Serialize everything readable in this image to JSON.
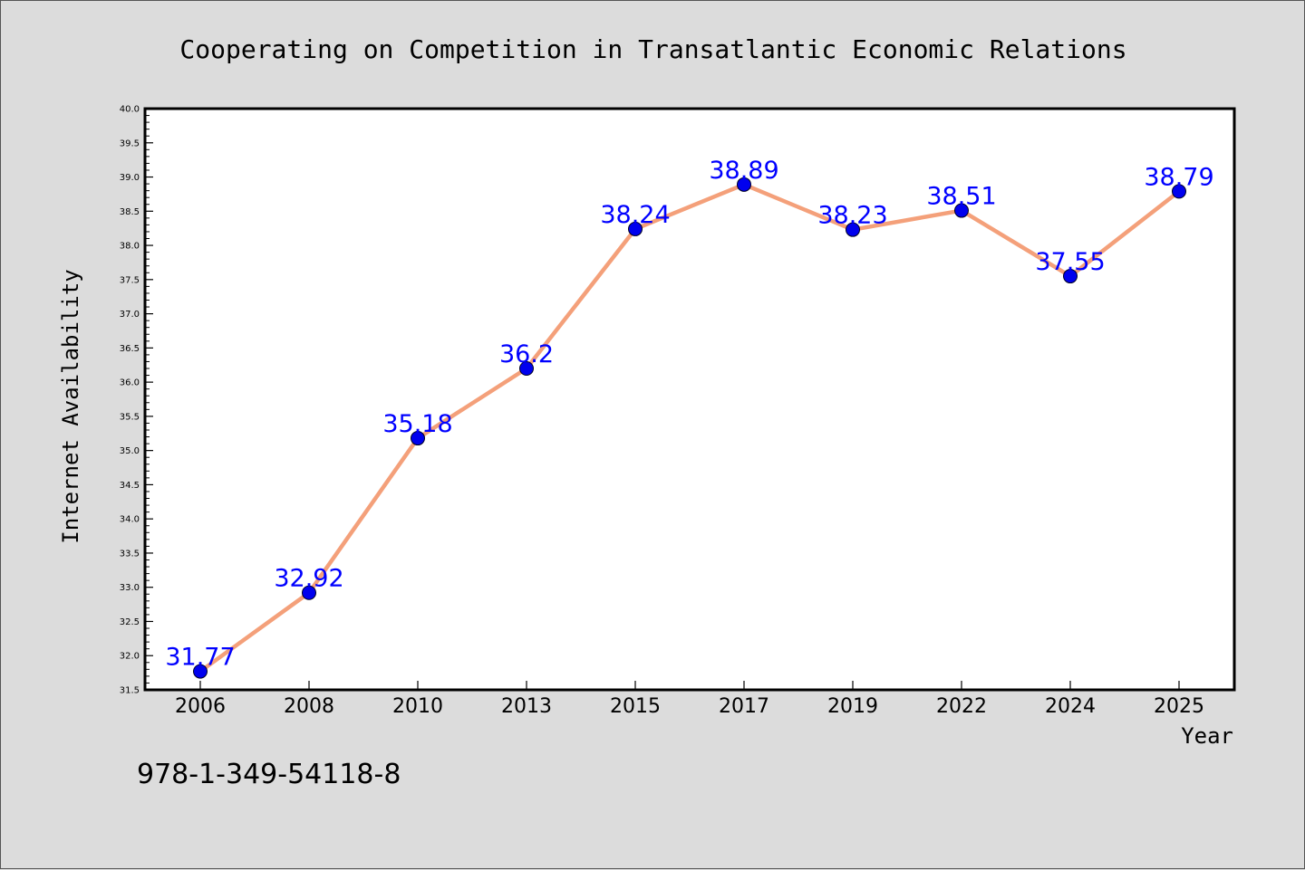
{
  "chart_data": {
    "type": "line",
    "title": "Cooperating on Competition in Transatlantic Economic Relations",
    "xlabel": "Year",
    "ylabel": "Internet Availability",
    "categories": [
      "2006",
      "2008",
      "2010",
      "2013",
      "2015",
      "2017",
      "2019",
      "2022",
      "2024",
      "2025"
    ],
    "series": [
      {
        "values": [
          31.77,
          32.92,
          35.18,
          36.2,
          38.24,
          38.89,
          38.23,
          38.51,
          37.55,
          38.79
        ],
        "data_labels": [
          "31.77",
          "32.92",
          "35.18",
          "36.2",
          "38.24",
          "38.89",
          "38.23",
          "38.51",
          "37.55",
          "38.79"
        ],
        "line_color": "#f4a07a",
        "marker_color": "#0000ee"
      }
    ],
    "ylim": [
      31.5,
      40.0
    ],
    "yticks": [
      "31.5",
      "32.0",
      "32.5",
      "33.0",
      "33.5",
      "34.0",
      "34.5",
      "35.0",
      "35.5",
      "36.0",
      "36.5",
      "37.0",
      "37.5",
      "38.0",
      "38.5",
      "39.0",
      "39.5",
      "40.0"
    ],
    "label_color": "#0000ff",
    "grid": false,
    "legend": "none"
  },
  "footer_text": "978-1-349-54118-8"
}
